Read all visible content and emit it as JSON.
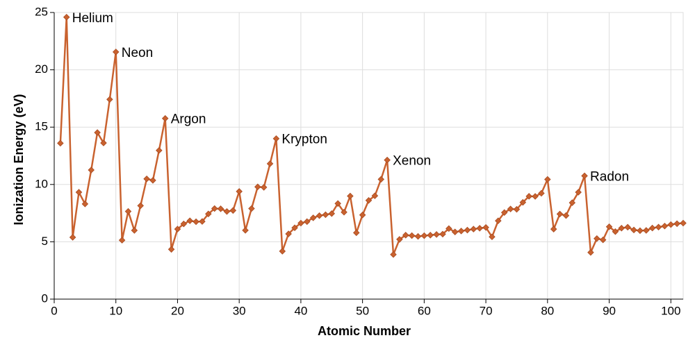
{
  "chart_data": {
    "type": "line",
    "xlabel": "Atomic Number",
    "ylabel": "Ionization Energy (eV)",
    "x": [
      1,
      2,
      3,
      4,
      5,
      6,
      7,
      8,
      9,
      10,
      11,
      12,
      13,
      14,
      15,
      16,
      17,
      18,
      19,
      20,
      21,
      22,
      23,
      24,
      25,
      26,
      27,
      28,
      29,
      30,
      31,
      32,
      33,
      34,
      35,
      36,
      37,
      38,
      39,
      40,
      41,
      42,
      43,
      44,
      45,
      46,
      47,
      48,
      49,
      50,
      51,
      52,
      53,
      54,
      55,
      56,
      57,
      58,
      59,
      60,
      61,
      62,
      63,
      64,
      65,
      66,
      67,
      68,
      69,
      70,
      71,
      72,
      73,
      74,
      75,
      76,
      77,
      78,
      79,
      80,
      81,
      82,
      83,
      84,
      85,
      86,
      87,
      88,
      89,
      90,
      91,
      92,
      93,
      94,
      95,
      96,
      97,
      98,
      99,
      100,
      101,
      102
    ],
    "series": [
      {
        "color": "#c9622f",
        "values": [
          13.6,
          24.59,
          5.39,
          9.32,
          8.3,
          11.26,
          14.53,
          13.62,
          17.42,
          21.56,
          5.14,
          7.65,
          5.99,
          8.15,
          10.49,
          10.36,
          12.97,
          15.76,
          4.34,
          6.11,
          6.56,
          6.83,
          6.75,
          6.77,
          7.43,
          7.9,
          7.88,
          7.64,
          7.73,
          9.39,
          6.0,
          7.9,
          9.79,
          9.75,
          11.81,
          14.0,
          4.18,
          5.69,
          6.22,
          6.63,
          6.76,
          7.09,
          7.28,
          7.36,
          7.46,
          8.34,
          7.58,
          8.99,
          5.79,
          7.34,
          8.61,
          9.01,
          10.45,
          12.13,
          3.89,
          5.21,
          5.58,
          5.54,
          5.47,
          5.53,
          5.58,
          5.64,
          5.67,
          6.15,
          5.86,
          5.94,
          6.02,
          6.11,
          6.18,
          6.25,
          5.43,
          6.83,
          7.55,
          7.86,
          7.83,
          8.44,
          8.97,
          8.96,
          9.23,
          10.44,
          6.11,
          7.42,
          7.29,
          8.41,
          9.32,
          10.75,
          4.07,
          5.28,
          5.17,
          6.31,
          5.89,
          6.19,
          6.27,
          6.03,
          5.97,
          5.99,
          6.2,
          6.28,
          6.37,
          6.5,
          6.58,
          6.63
        ]
      }
    ],
    "annotations": [
      {
        "text": "Helium",
        "x": 2
      },
      {
        "text": "Neon",
        "x": 10
      },
      {
        "text": "Argon",
        "x": 18
      },
      {
        "text": "Krypton",
        "x": 36
      },
      {
        "text": "Xenon",
        "x": 54
      },
      {
        "text": "Radon",
        "x": 86
      }
    ],
    "xlim": [
      0,
      102
    ],
    "ylim": [
      0,
      25
    ],
    "xticks": [
      0,
      10,
      20,
      30,
      40,
      50,
      60,
      70,
      80,
      90,
      100
    ],
    "yticks": [
      0,
      5,
      10,
      15,
      20,
      25
    ],
    "grid": true
  }
}
